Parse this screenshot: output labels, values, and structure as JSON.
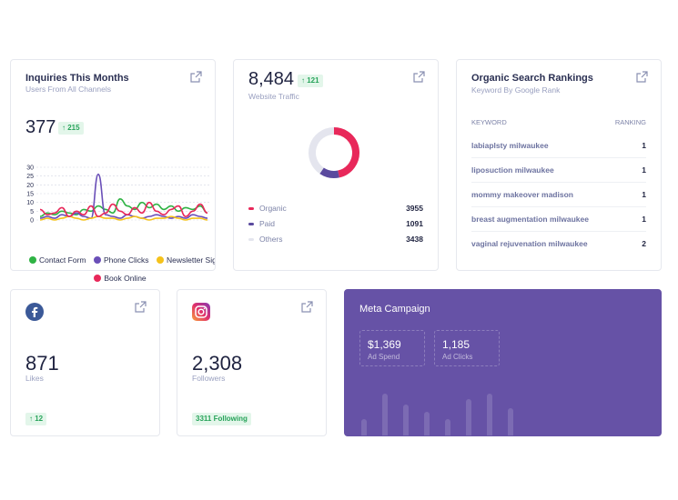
{
  "inquiries": {
    "title": "Inquiries This Months",
    "subtitle": "Users From All Channels",
    "value": "377",
    "change": "↑ 215",
    "chart_data": {
      "type": "line",
      "y_ticks": [
        "30",
        "25",
        "20",
        "15",
        "10",
        "5",
        "0"
      ],
      "ylim": [
        0,
        30
      ],
      "x": [
        0,
        1,
        2,
        3,
        4,
        5,
        6,
        7,
        8,
        9,
        10,
        11,
        12,
        13,
        14,
        15,
        16,
        17,
        18,
        19,
        20,
        21,
        22,
        23
      ],
      "series": [
        {
          "name": "Contact Form",
          "color": "#2fb344",
          "values": [
            2,
            4,
            3,
            5,
            4,
            3,
            6,
            5,
            8,
            6,
            4,
            12,
            8,
            6,
            10,
            7,
            9,
            6,
            8,
            5,
            7,
            6,
            8,
            4
          ]
        },
        {
          "name": "Phone Clicks",
          "color": "#6a4fb8",
          "values": [
            1,
            2,
            1,
            3,
            2,
            4,
            2,
            1,
            26,
            3,
            2,
            1,
            3,
            2,
            1,
            2,
            3,
            2,
            1,
            2,
            1,
            3,
            2,
            1
          ]
        },
        {
          "name": "Newsletter Signups",
          "color": "#f5c21b",
          "values": [
            0,
            1,
            0,
            1,
            2,
            1,
            0,
            1,
            2,
            1,
            1,
            0,
            1,
            2,
            1,
            0,
            1,
            1,
            2,
            1,
            0,
            1,
            1,
            0
          ]
        },
        {
          "name": "Book Online",
          "color": "#e8285a",
          "values": [
            6,
            3,
            4,
            7,
            2,
            5,
            3,
            8,
            2,
            4,
            9,
            5,
            3,
            7,
            4,
            10,
            5,
            3,
            6,
            8,
            2,
            5,
            9,
            4
          ]
        }
      ]
    },
    "legend": [
      "Contact Form",
      "Phone Clicks",
      "Newsletter Signups",
      "Book Online"
    ]
  },
  "traffic": {
    "value": "8,484",
    "change": "↑ 121",
    "subtitle": "Website Traffic",
    "chart_data": {
      "type": "pie",
      "categories": [
        "Organic",
        "Paid",
        "Others"
      ],
      "values": [
        3955,
        1091,
        3438
      ],
      "colors": [
        "#e8285a",
        "#5a4a9e",
        "#e4e5ee"
      ]
    },
    "rows": [
      {
        "label": "Organic",
        "value": "3955",
        "color": "#e8285a"
      },
      {
        "label": "Paid",
        "value": "1091",
        "color": "#5a4a9e"
      },
      {
        "label": "Others",
        "value": "3438",
        "color": "#e4e5ee"
      }
    ]
  },
  "rankings": {
    "title": "Organic Search Rankings",
    "subtitle": "Keyword By Google Rank",
    "col_keyword": "KEYWORD",
    "col_ranking": "RANKING",
    "rows": [
      {
        "keyword": "labiaplsty milwaukee",
        "rank": "1"
      },
      {
        "keyword": "liposuction milwaukee",
        "rank": "1"
      },
      {
        "keyword": "mommy makeover madison",
        "rank": "1"
      },
      {
        "keyword": "breast augmentation milwaukee",
        "rank": "1"
      },
      {
        "keyword": "vaginal rejuvenation milwaukee",
        "rank": "2"
      }
    ]
  },
  "facebook": {
    "value": "871",
    "label": "Likes",
    "change": "↑ 12",
    "icon": "facebook-icon",
    "color": "#3b5998"
  },
  "instagram": {
    "value": "2,308",
    "label": "Followers",
    "badge": "3311 Following",
    "icon": "instagram-icon"
  },
  "meta": {
    "title": "Meta Campaign",
    "spend_value": "$1,369",
    "spend_label": "Ad Spend",
    "clicks_value": "1,185",
    "clicks_label": "Ad Clicks",
    "color": "#6652a6",
    "bars": [
      18,
      46,
      34,
      26,
      18,
      40,
      46,
      30
    ]
  }
}
